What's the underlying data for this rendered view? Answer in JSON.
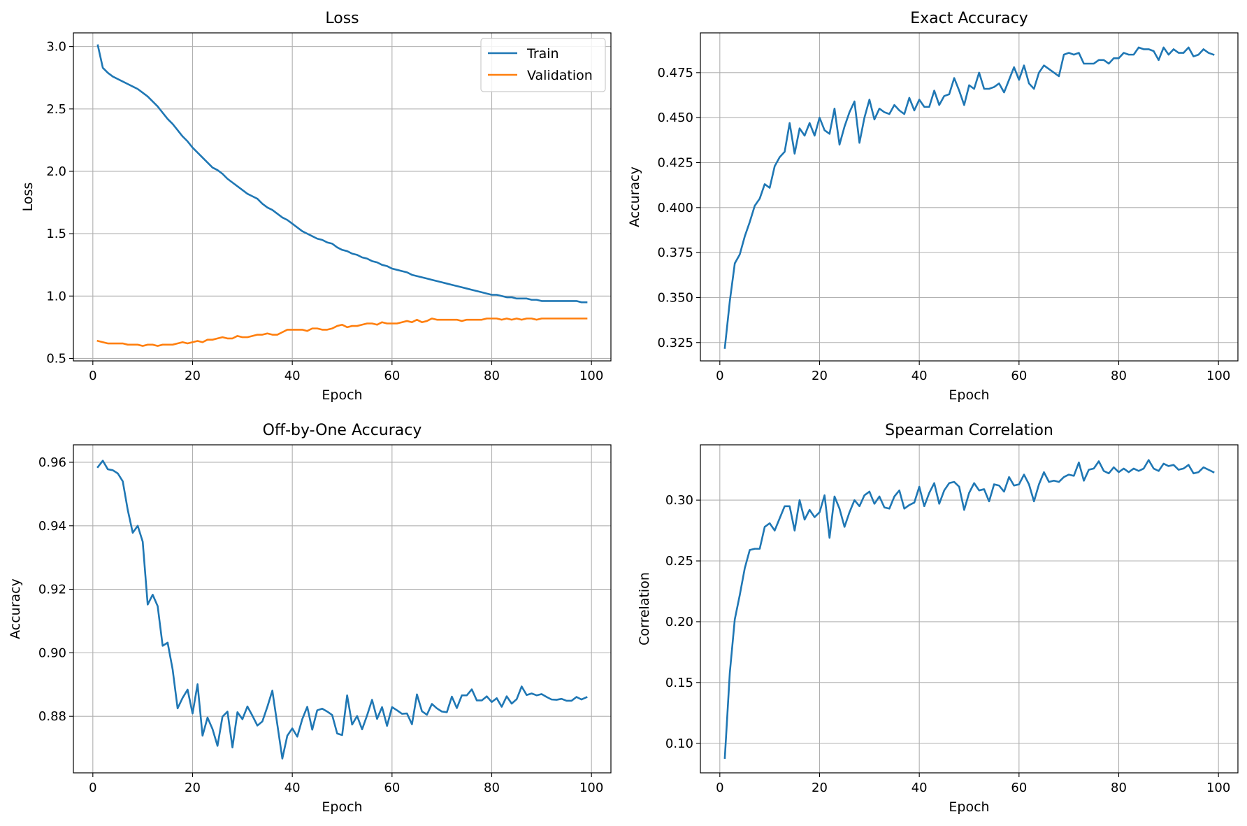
{
  "chart_data": [
    {
      "type": "line",
      "title": "Loss",
      "xlabel": "Epoch",
      "ylabel": "Loss",
      "xlim": [
        -3.9,
        103.9
      ],
      "ylim": [
        0.48,
        3.11
      ],
      "xticks": [
        0,
        20,
        40,
        60,
        80,
        100
      ],
      "yticks": [
        0.5,
        1.0,
        1.5,
        2.0,
        2.5,
        3.0
      ],
      "ytick_decimals": 1,
      "grid": true,
      "legend_position": "top-right",
      "x_start": 1,
      "series": [
        {
          "name": "Train",
          "color": "#1f77b4",
          "values": [
            3.01,
            2.83,
            2.79,
            2.76,
            2.74,
            2.72,
            2.7,
            2.68,
            2.66,
            2.63,
            2.6,
            2.56,
            2.52,
            2.47,
            2.42,
            2.38,
            2.33,
            2.28,
            2.24,
            2.19,
            2.15,
            2.11,
            2.07,
            2.03,
            2.01,
            1.98,
            1.94,
            1.91,
            1.88,
            1.85,
            1.82,
            1.8,
            1.78,
            1.74,
            1.71,
            1.69,
            1.66,
            1.63,
            1.61,
            1.58,
            1.55,
            1.52,
            1.5,
            1.48,
            1.46,
            1.45,
            1.43,
            1.42,
            1.39,
            1.37,
            1.36,
            1.34,
            1.33,
            1.31,
            1.3,
            1.28,
            1.27,
            1.25,
            1.24,
            1.22,
            1.21,
            1.2,
            1.19,
            1.17,
            1.16,
            1.15,
            1.14,
            1.13,
            1.12,
            1.11,
            1.1,
            1.09,
            1.08,
            1.07,
            1.06,
            1.05,
            1.04,
            1.03,
            1.02,
            1.01,
            1.01,
            1.0,
            0.99,
            0.99,
            0.98,
            0.98,
            0.98,
            0.97,
            0.97,
            0.96,
            0.96,
            0.96,
            0.96,
            0.96,
            0.96,
            0.96,
            0.96,
            0.95,
            0.95
          ]
        },
        {
          "name": "Validation",
          "color": "#ff7f0e",
          "values": [
            0.64,
            0.63,
            0.62,
            0.62,
            0.62,
            0.62,
            0.61,
            0.61,
            0.61,
            0.6,
            0.61,
            0.61,
            0.6,
            0.61,
            0.61,
            0.61,
            0.62,
            0.63,
            0.62,
            0.63,
            0.64,
            0.63,
            0.65,
            0.65,
            0.66,
            0.67,
            0.66,
            0.66,
            0.68,
            0.67,
            0.67,
            0.68,
            0.69,
            0.69,
            0.7,
            0.69,
            0.69,
            0.71,
            0.73,
            0.73,
            0.73,
            0.73,
            0.72,
            0.74,
            0.74,
            0.73,
            0.73,
            0.74,
            0.76,
            0.77,
            0.75,
            0.76,
            0.76,
            0.77,
            0.78,
            0.78,
            0.77,
            0.79,
            0.78,
            0.78,
            0.78,
            0.79,
            0.8,
            0.79,
            0.81,
            0.79,
            0.8,
            0.82,
            0.81,
            0.81,
            0.81,
            0.81,
            0.81,
            0.8,
            0.81,
            0.81,
            0.81,
            0.81,
            0.82,
            0.82,
            0.82,
            0.81,
            0.82,
            0.81,
            0.82,
            0.81,
            0.82,
            0.82,
            0.81,
            0.82,
            0.82,
            0.82,
            0.82,
            0.82,
            0.82,
            0.82,
            0.82,
            0.82,
            0.82
          ]
        }
      ]
    },
    {
      "type": "line",
      "title": "Exact Accuracy",
      "xlabel": "Epoch",
      "ylabel": "Accuracy",
      "xlim": [
        -3.9,
        103.9
      ],
      "ylim": [
        0.3148,
        0.4971
      ],
      "xticks": [
        0,
        20,
        40,
        60,
        80,
        100
      ],
      "yticks": [
        0.325,
        0.35,
        0.375,
        0.4,
        0.425,
        0.45,
        0.475
      ],
      "ytick_decimals": 3,
      "grid": true,
      "x_start": 1,
      "series": [
        {
          "color": "#1f77b4",
          "values": [
            0.322,
            0.348,
            0.369,
            0.374,
            0.384,
            0.392,
            0.401,
            0.405,
            0.413,
            0.411,
            0.423,
            0.428,
            0.431,
            0.447,
            0.43,
            0.444,
            0.44,
            0.447,
            0.44,
            0.45,
            0.443,
            0.441,
            0.455,
            0.435,
            0.445,
            0.453,
            0.459,
            0.436,
            0.45,
            0.46,
            0.449,
            0.455,
            0.453,
            0.452,
            0.457,
            0.454,
            0.452,
            0.461,
            0.454,
            0.46,
            0.456,
            0.456,
            0.465,
            0.457,
            0.462,
            0.463,
            0.472,
            0.465,
            0.457,
            0.468,
            0.466,
            0.475,
            0.466,
            0.466,
            0.467,
            0.469,
            0.464,
            0.471,
            0.478,
            0.471,
            0.479,
            0.469,
            0.466,
            0.475,
            0.479,
            0.477,
            0.475,
            0.473,
            0.485,
            0.486,
            0.485,
            0.486,
            0.48,
            0.48,
            0.48,
            0.482,
            0.482,
            0.48,
            0.483,
            0.483,
            0.486,
            0.485,
            0.485,
            0.489,
            0.488,
            0.488,
            0.487,
            0.482,
            0.489,
            0.485,
            0.488,
            0.486,
            0.486,
            0.489,
            0.484,
            0.485,
            0.488,
            0.486,
            0.485
          ]
        }
      ]
    },
    {
      "type": "line",
      "title": "Off-by-One Accuracy",
      "xlabel": "Epoch",
      "ylabel": "Accuracy",
      "xlim": [
        -3.9,
        103.9
      ],
      "ylim": [
        0.8622,
        0.9655
      ],
      "xticks": [
        0,
        20,
        40,
        60,
        80,
        100
      ],
      "yticks": [
        0.88,
        0.9,
        0.92,
        0.94,
        0.96
      ],
      "ytick_decimals": 2,
      "grid": true,
      "x_start": 1,
      "series": [
        {
          "color": "#1f77b4",
          "values": [
            0.9585,
            0.9605,
            0.9578,
            0.9575,
            0.9565,
            0.954,
            0.945,
            0.9378,
            0.94,
            0.935,
            0.9152,
            0.9183,
            0.9147,
            0.9022,
            0.9032,
            0.8948,
            0.8825,
            0.8858,
            0.8884,
            0.8809,
            0.8901,
            0.8739,
            0.8796,
            0.876,
            0.8707,
            0.8799,
            0.8815,
            0.8702,
            0.8813,
            0.8791,
            0.8831,
            0.8802,
            0.8771,
            0.8784,
            0.883,
            0.8881,
            0.8774,
            0.8667,
            0.8739,
            0.8762,
            0.8736,
            0.8791,
            0.883,
            0.8758,
            0.8819,
            0.8824,
            0.8815,
            0.8804,
            0.8746,
            0.8741,
            0.8866,
            0.8774,
            0.8801,
            0.8759,
            0.8803,
            0.8852,
            0.8792,
            0.8829,
            0.877,
            0.8829,
            0.8819,
            0.8808,
            0.8809,
            0.8775,
            0.8869,
            0.8816,
            0.8805,
            0.8839,
            0.8825,
            0.8815,
            0.8813,
            0.8862,
            0.8826,
            0.8866,
            0.8866,
            0.8885,
            0.885,
            0.885,
            0.8863,
            0.8845,
            0.8857,
            0.883,
            0.8863,
            0.884,
            0.8854,
            0.8894,
            0.8867,
            0.8872,
            0.8866,
            0.887,
            0.8861,
            0.8853,
            0.8852,
            0.8855,
            0.8849,
            0.8849,
            0.8861,
            0.8853,
            0.886
          ]
        }
      ]
    },
    {
      "type": "line",
      "title": "Spearman Correlation",
      "xlabel": "Epoch",
      "ylabel": "Correlation",
      "xlim": [
        -3.9,
        103.9
      ],
      "ylim": [
        0.0757,
        0.3455
      ],
      "xticks": [
        0,
        20,
        40,
        60,
        80,
        100
      ],
      "yticks": [
        0.1,
        0.15,
        0.2,
        0.25,
        0.3
      ],
      "ytick_decimals": 2,
      "grid": true,
      "x_start": 1,
      "series": [
        {
          "color": "#1f77b4",
          "values": [
            0.088,
            0.158,
            0.202,
            0.222,
            0.244,
            0.259,
            0.26,
            0.26,
            0.278,
            0.281,
            0.275,
            0.285,
            0.295,
            0.295,
            0.275,
            0.3,
            0.284,
            0.292,
            0.286,
            0.29,
            0.304,
            0.269,
            0.303,
            0.293,
            0.278,
            0.29,
            0.3,
            0.295,
            0.304,
            0.307,
            0.297,
            0.303,
            0.294,
            0.293,
            0.303,
            0.308,
            0.293,
            0.296,
            0.298,
            0.311,
            0.295,
            0.306,
            0.314,
            0.297,
            0.308,
            0.314,
            0.315,
            0.311,
            0.292,
            0.306,
            0.314,
            0.308,
            0.309,
            0.299,
            0.313,
            0.312,
            0.307,
            0.319,
            0.312,
            0.313,
            0.321,
            0.313,
            0.299,
            0.313,
            0.323,
            0.315,
            0.316,
            0.315,
            0.319,
            0.321,
            0.32,
            0.331,
            0.316,
            0.325,
            0.326,
            0.332,
            0.324,
            0.322,
            0.327,
            0.323,
            0.326,
            0.323,
            0.326,
            0.324,
            0.326,
            0.333,
            0.326,
            0.324,
            0.33,
            0.328,
            0.329,
            0.325,
            0.326,
            0.329,
            0.322,
            0.323,
            0.327,
            0.325,
            0.323
          ]
        }
      ]
    }
  ]
}
